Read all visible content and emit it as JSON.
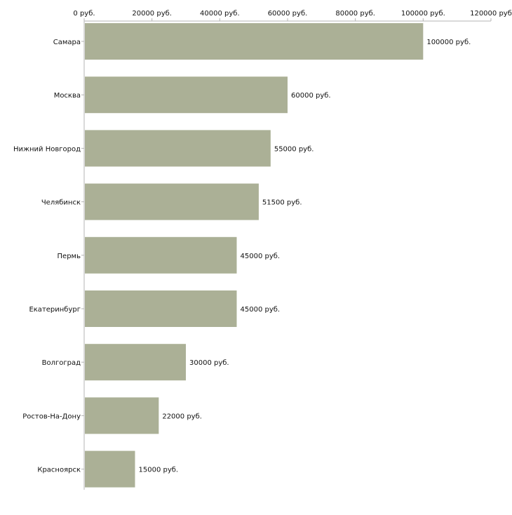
{
  "chart_data": {
    "type": "bar",
    "orientation": "horizontal",
    "title": "",
    "xlabel": "",
    "ylabel": "",
    "xlim": [
      0,
      120000
    ],
    "tick_values": [
      0,
      20000,
      40000,
      60000,
      80000,
      100000,
      120000
    ],
    "tick_labels": [
      "0 руб.",
      "20000 руб.",
      "40000 руб.",
      "60000 руб.",
      "80000 руб.",
      "100000 руб.",
      "120000 руб"
    ],
    "categories": [
      "Самара",
      "Москва",
      "Нижний Новгород",
      "Челябинск",
      "Пермь",
      "Екатеринбург",
      "Волгоград",
      "Ростов-На-Дону",
      "Красноярск"
    ],
    "values": [
      100000,
      60000,
      55000,
      51500,
      45000,
      45000,
      30000,
      22000,
      15000
    ],
    "value_labels": [
      "100000 руб.",
      "60000 руб.",
      "55000 руб.",
      "51500 руб.",
      "45000 руб.",
      "45000 руб.",
      "30000 руб.",
      "22000 руб.",
      "15000 руб."
    ],
    "bar_color": "#abb096",
    "axis_color": "#b4b4b4",
    "grid": false,
    "legend": "none"
  }
}
